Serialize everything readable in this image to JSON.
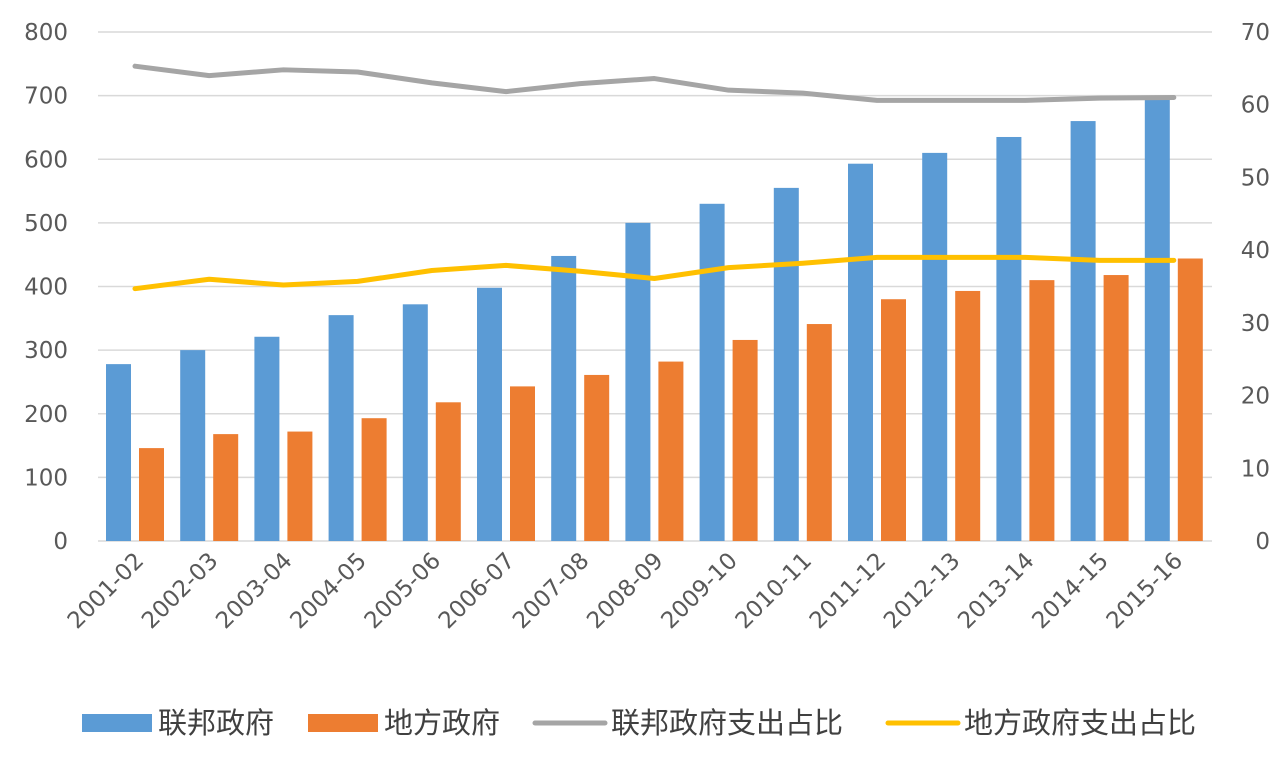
{
  "chart_data": {
    "type": "bar",
    "categories": [
      "2001-02",
      "2002-03",
      "2003-04",
      "2004-05",
      "2005-06",
      "2006-07",
      "2007-08",
      "2008-09",
      "2009-10",
      "2010-11",
      "2011-12",
      "2012-13",
      "2013-14",
      "2014-15",
      "2015-16"
    ],
    "series": [
      {
        "name": "联邦政府",
        "type": "bar",
        "axis": "left",
        "color": "#5b9bd5",
        "values": [
          278,
          300,
          321,
          355,
          372,
          398,
          448,
          500,
          530,
          555,
          593,
          610,
          635,
          660,
          695
        ]
      },
      {
        "name": "地方政府",
        "type": "bar",
        "axis": "left",
        "color": "#ed7d31",
        "values": [
          146,
          168,
          172,
          193,
          218,
          243,
          261,
          282,
          316,
          341,
          380,
          393,
          410,
          418,
          444
        ]
      },
      {
        "name": "联邦政府支出占比",
        "type": "line",
        "axis": "right",
        "color": "#a5a5a5",
        "values": [
          65.3,
          64.0,
          64.8,
          64.5,
          63.0,
          61.8,
          62.9,
          63.6,
          62.0,
          61.6,
          60.6,
          60.6,
          60.6,
          60.9,
          61.0
        ]
      },
      {
        "name": "地方政府支出占比",
        "type": "line",
        "axis": "right",
        "color": "#ffc000",
        "values": [
          34.7,
          36.0,
          35.2,
          35.7,
          37.2,
          37.9,
          37.1,
          36.1,
          37.6,
          38.2,
          39.0,
          39.0,
          39.0,
          38.6,
          38.6
        ]
      }
    ],
    "yleft": {
      "ticks": [
        "0",
        "100",
        "200",
        "300",
        "400",
        "500",
        "600",
        "700",
        "800"
      ],
      "ylim": [
        0,
        800
      ]
    },
    "yright": {
      "ticks": [
        "0",
        "10",
        "20",
        "30",
        "40",
        "50",
        "60",
        "70"
      ],
      "ylim": [
        0,
        70
      ]
    },
    "grid": true,
    "legend_position": "bottom"
  }
}
